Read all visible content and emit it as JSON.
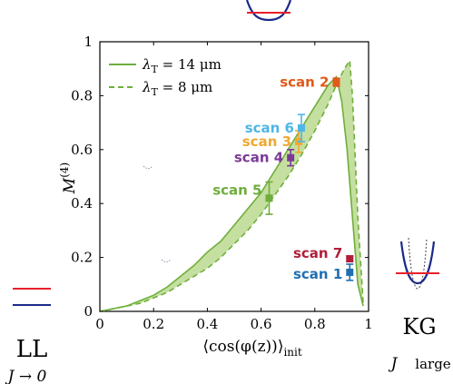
{
  "chart_data": {
    "type": "area",
    "xlabel": "⟨cos(φ(z))⟩",
    "xlabel_sub": "init",
    "ylabel": "M",
    "ylabel_sup": "(4)",
    "xlim": [
      0,
      1
    ],
    "ylim": [
      0,
      1
    ],
    "xticks": [
      "0",
      "0.2",
      "0.4",
      "0.6",
      "0.8",
      "1"
    ],
    "yticks": [
      "0",
      "0.2",
      "0.4",
      "0.6",
      "0.8",
      "1"
    ],
    "xtick_values": [
      0,
      0.2,
      0.4,
      0.6,
      0.8,
      1
    ],
    "ytick_values": [
      0,
      0.2,
      0.4,
      0.6,
      0.8,
      1
    ],
    "legend_placement": "top-left",
    "series": [
      {
        "name": "λT = 14 μm",
        "label_main": "λ",
        "label_sub": "T",
        "label_rest": " = 14 μm",
        "style": "solid",
        "color": "#6fae3c",
        "x": [
          0,
          0.05,
          0.1,
          0.15,
          0.2,
          0.25,
          0.3,
          0.35,
          0.4,
          0.45,
          0.5,
          0.55,
          0.6,
          0.65,
          0.7,
          0.75,
          0.8,
          0.85,
          0.88,
          0.9,
          0.92,
          0.94,
          0.96,
          0.98
        ],
        "y": [
          0.0,
          0.01,
          0.02,
          0.04,
          0.06,
          0.09,
          0.13,
          0.17,
          0.22,
          0.26,
          0.32,
          0.38,
          0.44,
          0.52,
          0.6,
          0.68,
          0.76,
          0.84,
          0.87,
          0.78,
          0.6,
          0.35,
          0.1,
          0.02
        ]
      },
      {
        "name": "λT = 8 μm",
        "label_main": "λ",
        "label_sub": "T",
        "label_rest": " = 8 μm",
        "style": "dashed",
        "color": "#6fae3c",
        "x": [
          0,
          0.05,
          0.1,
          0.15,
          0.2,
          0.25,
          0.3,
          0.35,
          0.4,
          0.45,
          0.5,
          0.55,
          0.6,
          0.65,
          0.7,
          0.75,
          0.8,
          0.85,
          0.88,
          0.91,
          0.93,
          0.94,
          0.96,
          0.98
        ],
        "y": [
          0.0,
          0.01,
          0.02,
          0.03,
          0.05,
          0.07,
          0.1,
          0.13,
          0.16,
          0.2,
          0.25,
          0.3,
          0.36,
          0.43,
          0.5,
          0.58,
          0.67,
          0.77,
          0.84,
          0.9,
          0.93,
          0.8,
          0.35,
          0.03
        ]
      }
    ],
    "scans": [
      {
        "label": "scan 1",
        "x": 0.93,
        "y": 0.145,
        "yerr": 0.03,
        "color": "#1f6fb2"
      },
      {
        "label": "scan 2",
        "x": 0.88,
        "y": 0.85,
        "yerr": 0.015,
        "color": "#e05a1a"
      },
      {
        "label": "scan 3",
        "x": 0.74,
        "y": 0.63,
        "yerr": 0.04,
        "color": "#f0a830"
      },
      {
        "label": "scan 4",
        "x": 0.71,
        "y": 0.57,
        "yerr": 0.03,
        "color": "#7b3a96"
      },
      {
        "label": "scan 5",
        "x": 0.63,
        "y": 0.42,
        "yerr": 0.06,
        "color": "#6fae3c"
      },
      {
        "label": "scan 6",
        "x": 0.75,
        "y": 0.68,
        "yerr": 0.05,
        "color": "#4fb6e6"
      },
      {
        "label": "scan 7",
        "x": 0.93,
        "y": 0.195,
        "yerr": 0.01,
        "color": "#b01e3a"
      }
    ]
  },
  "side_labels": {
    "left_big": "LL",
    "left_small": "J → 0",
    "right_big": "KG",
    "right_small_j": "J",
    "right_small_rest": "large"
  },
  "colors": {
    "fill": "#c5dfa0",
    "line": "#6fae3c",
    "red_line": "#e8202a",
    "blue_line": "#1a2a8a"
  }
}
